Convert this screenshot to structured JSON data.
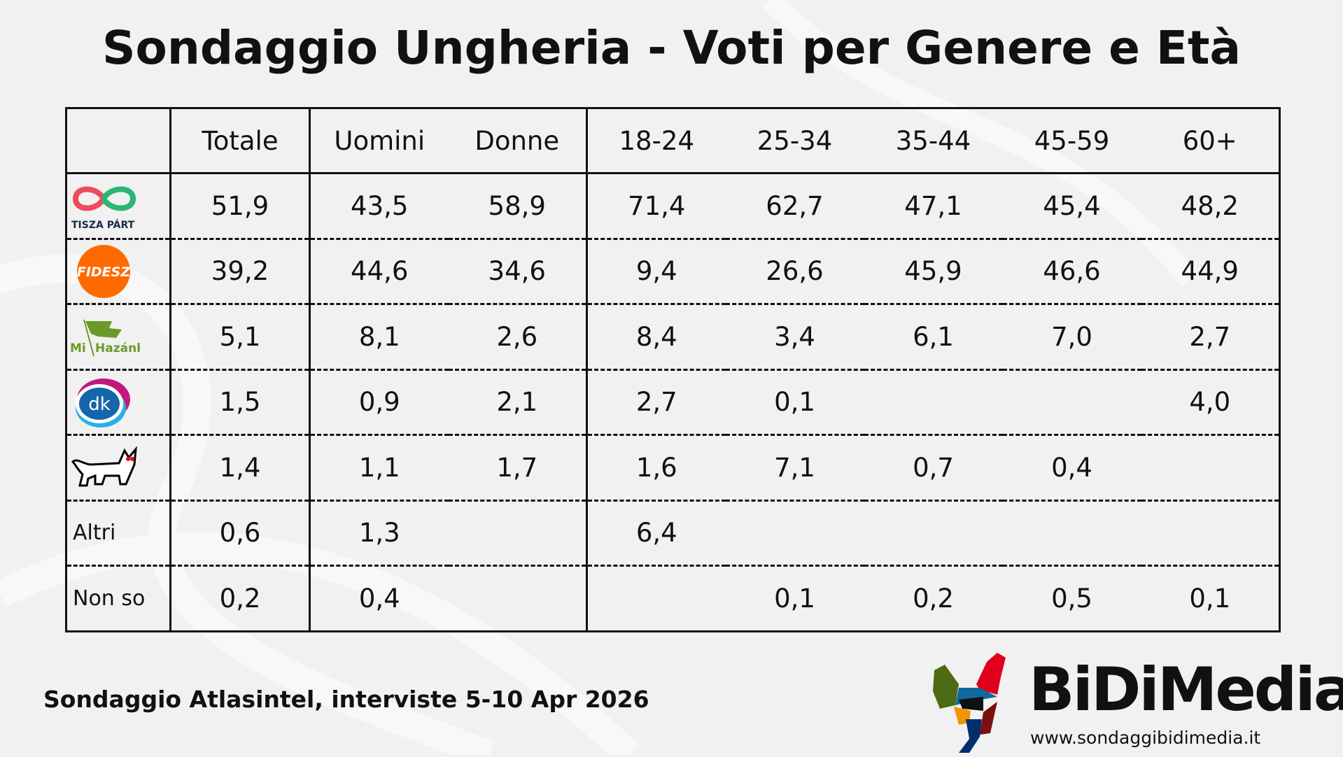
{
  "title": "Sondaggio Ungheria - Voti per Genere e Età",
  "table": {
    "headers": [
      "",
      "Totale",
      "Uomini",
      "Donne",
      "18-24",
      "25-34",
      "35-44",
      "45-59",
      "60+"
    ],
    "rows": [
      {
        "party": "TISZA PÁRT",
        "logo": "tisza-logo",
        "values": [
          "51,9",
          "43,5",
          "58,9",
          "71,4",
          "62,7",
          "47,1",
          "45,4",
          "48,2"
        ]
      },
      {
        "party": "FIDESZ",
        "logo": "fidesz-logo",
        "values": [
          "39,2",
          "44,6",
          "34,6",
          "9,4",
          "26,6",
          "45,9",
          "46,6",
          "44,9"
        ]
      },
      {
        "party": "Mi Hazánk",
        "logo": "mi-hazank-logo",
        "values": [
          "5,1",
          "8,1",
          "2,6",
          "8,4",
          "3,4",
          "6,1",
          "7,0",
          "2,7"
        ]
      },
      {
        "party": "dk",
        "logo": "dk-logo",
        "values": [
          "1,5",
          "0,9",
          "2,1",
          "2,7",
          "0,1",
          "",
          "",
          "4,0"
        ]
      },
      {
        "party": "MKKP",
        "logo": "dog-logo",
        "values": [
          "1,4",
          "1,1",
          "1,7",
          "1,6",
          "7,1",
          "0,7",
          "0,4",
          ""
        ]
      },
      {
        "party": "Altri",
        "values": [
          "0,6",
          "1,3",
          "",
          "6,4",
          "",
          "",
          "",
          ""
        ]
      },
      {
        "party": "Non so",
        "values": [
          "0,2",
          "0,4",
          "",
          "",
          "0,1",
          "0,2",
          "0,5",
          "0,1"
        ]
      }
    ]
  },
  "footer": "Sondaggio Atlasintel, interviste 5-10 Apr 2026",
  "brand": {
    "name": "BiDiMedia",
    "url": "www.sondaggibidimedia.it"
  },
  "colors": {
    "background": "#f1f1f1",
    "tisza_red": "#ef4b5b",
    "tisza_green": "#2bb673",
    "fidesz": "#ff6a00",
    "mihazank": "#6a9a2a",
    "dk_blue": "#1565a9"
  }
}
